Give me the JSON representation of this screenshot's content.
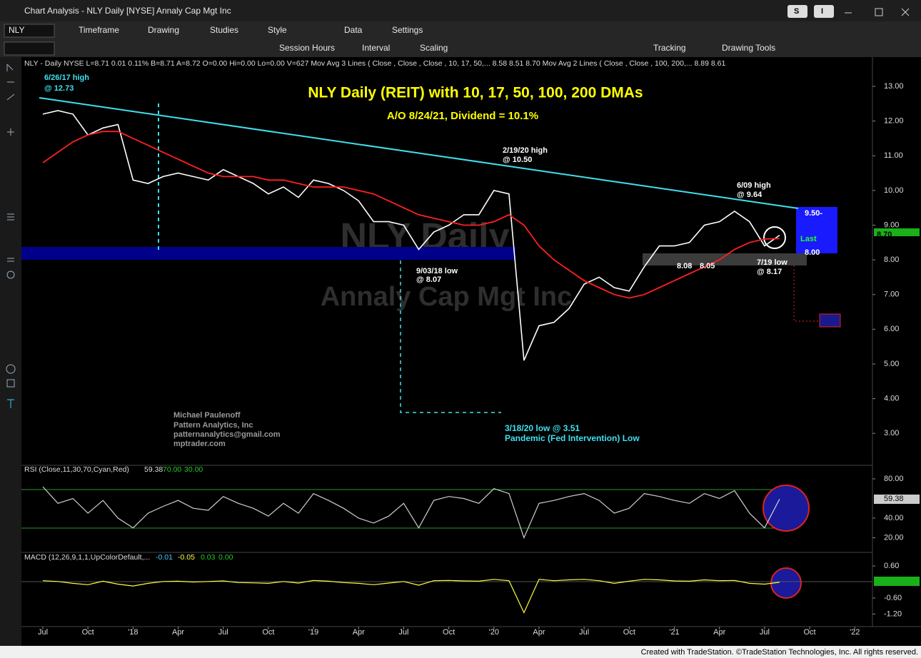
{
  "window": {
    "title": "Chart Analysis - NLY Daily [NYSE] Annaly Cap Mgt Inc",
    "buttons": [
      "S",
      "I"
    ]
  },
  "toolbar": {
    "symbol": "NLY",
    "row1": [
      "Timeframe",
      "Drawing",
      "Studies",
      "Style",
      "Data",
      "Settings"
    ],
    "row2": [
      "Session Hours",
      "Interval",
      "Scaling",
      "Tracking",
      "Drawing Tools"
    ]
  },
  "chart_data": [
    {
      "type": "line",
      "status": "NLY - Daily  NYSE  L=8.71  0.01  0.11%  B=8.71  A=8.72  O=0.00  Hi=0.00  Lo=0.00  V=627  Mov Avg 3 Lines ( Close , Close , Close , 10, 17, 50,...  8.58  8.51  8.70  Mov Avg 2 Lines (  Close ,  Close , 100, 200,...  8.89  8.61",
      "title": "NLY Daily (REIT) with 10, 17, 50, 100, 200 DMAs",
      "subtitle": "A/O 8/24/21, Dividend = 10.1%",
      "watermark": [
        "NLY Daily",
        "Annaly Cap Mgt Inc"
      ],
      "annotations": [
        "6/26/17 high",
        "@ 12.73",
        "2/19/20 high",
        "@ 10.50",
        "6/09 high",
        "@ 9.64",
        "9/03/18 low",
        "@ 8.07",
        "7/19 low",
        "@ 8.17",
        "8.08",
        "8.05",
        "3/18/20 low @ 3.51",
        "Pandemic (Fed Intervention) Low",
        "Michael Paulenoff",
        "Pattern Analytics, Inc",
        "patternanalytics@gmail.com",
        "mptrader.com",
        "9.50-",
        "Last",
        "8.00",
        "8.70"
      ],
      "categories": [
        "Jul",
        null,
        null,
        "Oct",
        null,
        null,
        "'18",
        null,
        null,
        "Apr",
        null,
        null,
        "Jul",
        null,
        null,
        "Oct",
        null,
        null,
        "'19",
        null,
        null,
        "Apr",
        null,
        null,
        "Jul",
        null,
        null,
        "Oct",
        null,
        null,
        "'20",
        null,
        null,
        "Apr",
        null,
        null,
        "Jul",
        null,
        null,
        "Oct",
        null,
        null,
        "'21",
        null,
        null,
        "Apr",
        null,
        null,
        "Jul",
        null,
        null,
        "Oct",
        null,
        null,
        "'22"
      ],
      "series": [
        {
          "color": "#ffffff",
          "values": [
            12.2,
            12.3,
            12.2,
            11.6,
            11.8,
            11.9,
            10.3,
            10.2,
            10.4,
            10.5,
            10.4,
            10.3,
            10.6,
            10.4,
            10.2,
            9.9,
            10.1,
            9.8,
            10.3,
            10.2,
            10.0,
            9.7,
            9.1,
            9.1,
            9.0,
            8.3,
            8.8,
            9.0,
            9.3,
            9.3,
            10.0,
            9.9,
            5.1,
            6.1,
            6.2,
            6.6,
            7.3,
            7.5,
            7.2,
            7.1,
            7.8,
            8.4,
            8.4,
            8.5,
            9.0,
            9.1,
            9.4,
            9.1,
            8.4,
            8.71,
            null,
            null,
            null,
            null,
            null
          ]
        },
        {
          "color": "#ff2020",
          "values": [
            10.8,
            11.1,
            11.4,
            11.6,
            11.7,
            11.7,
            11.5,
            11.3,
            11.1,
            10.9,
            10.7,
            10.5,
            10.4,
            10.4,
            10.4,
            10.3,
            10.3,
            10.2,
            10.1,
            10.1,
            10.1,
            10.0,
            9.9,
            9.7,
            9.5,
            9.3,
            9.2,
            9.1,
            9.0,
            9.0,
            9.1,
            9.3,
            9.0,
            8.4,
            8.0,
            7.7,
            7.4,
            7.2,
            7.0,
            6.9,
            7.0,
            7.2,
            7.4,
            7.6,
            7.8,
            8.0,
            8.3,
            8.5,
            8.6,
            8.61,
            null,
            null,
            null,
            null,
            null
          ]
        }
      ],
      "ylim": [
        2.12,
        13.74
      ],
      "yticks": [
        {
          "value": 3,
          "label": "3.00"
        },
        {
          "value": 4,
          "label": "4.00"
        },
        {
          "value": 5,
          "label": "5.00"
        },
        {
          "value": 6,
          "label": "6.00"
        },
        {
          "value": 7,
          "label": "7.00"
        },
        {
          "value": 8,
          "label": "8.00"
        },
        {
          "value": 9,
          "label": "9.00"
        },
        {
          "value": 10,
          "label": "10.00"
        },
        {
          "value": 11,
          "label": "11.00"
        },
        {
          "value": 12,
          "label": "12.00"
        },
        {
          "value": 13,
          "label": "13.00"
        }
      ],
      "grid": false
    },
    {
      "type": "line",
      "status": [
        "RSI (Close,11,30,70,Cyan,Red)",
        "59.38",
        "70.00",
        "30.00"
      ],
      "color": "#d0d0d0",
      "levels": [
        70,
        30
      ],
      "values": [
        72,
        55,
        60,
        45,
        58,
        40,
        30,
        45,
        52,
        58,
        50,
        48,
        62,
        55,
        50,
        42,
        55,
        45,
        65,
        58,
        50,
        40,
        35,
        42,
        55,
        30,
        58,
        62,
        60,
        55,
        70,
        65,
        20,
        55,
        58,
        62,
        65,
        58,
        45,
        50,
        65,
        62,
        58,
        55,
        65,
        60,
        68,
        45,
        30,
        59.38,
        null,
        null,
        null,
        null,
        null
      ],
      "value_labels": [
        null,
        null,
        null,
        null,
        null,
        null,
        null,
        null,
        null,
        null,
        null,
        null,
        null,
        null,
        null,
        null,
        null,
        null,
        null,
        null,
        null,
        null,
        null,
        null,
        null,
        null,
        null,
        null,
        null,
        null,
        null,
        null,
        null,
        null,
        null,
        null,
        null,
        null,
        null,
        null,
        null,
        null,
        null,
        null,
        null,
        null,
        null,
        null,
        null,
        "59.38",
        null,
        null,
        null,
        null,
        null
      ],
      "ylim": [
        8,
        91.6
      ],
      "yticks": [
        {
          "value": 20,
          "label": "20.00"
        },
        {
          "value": 40,
          "label": "40.00"
        },
        {
          "value": 80,
          "label": "80.00"
        }
      ],
      "grid": false
    },
    {
      "type": "line",
      "status": [
        "MACD (12,26,9,1,1,UpColorDefault,...",
        "-0.01",
        "-0.05",
        "0.03",
        "0.00"
      ],
      "color": "#ffff40",
      "values": [
        0.05,
        0.02,
        -0.05,
        -0.1,
        0.03,
        -0.08,
        -0.15,
        -0.05,
        0.02,
        0.03,
        0,
        0.02,
        0.04,
        -0.02,
        -0.03,
        -0.05,
        0.02,
        -0.04,
        0.06,
        0.03,
        -0.02,
        -0.05,
        -0.1,
        -0.04,
        0.02,
        -0.12,
        0.05,
        0.06,
        0.04,
        0.03,
        0.1,
        0.05,
        -1.15,
        0.1,
        0.05,
        0.08,
        0.1,
        0.05,
        -0.05,
        0.03,
        0.1,
        0.08,
        0.04,
        0.03,
        0.08,
        0.05,
        0.06,
        -0.05,
        -0.08,
        -0.01,
        null,
        null,
        null,
        null,
        null
      ],
      "ylim": [
        -1.59,
        0.95
      ],
      "yticks": [
        {
          "value": 0.6,
          "label": "0.60"
        },
        {
          "value": -0.6,
          "label": "-0.60"
        },
        {
          "value": -1.2,
          "label": "-1.20"
        }
      ],
      "grid": false
    }
  ],
  "footer": "Created with TradeStation. ©TradeStation Technologies, Inc. All rights reserved."
}
